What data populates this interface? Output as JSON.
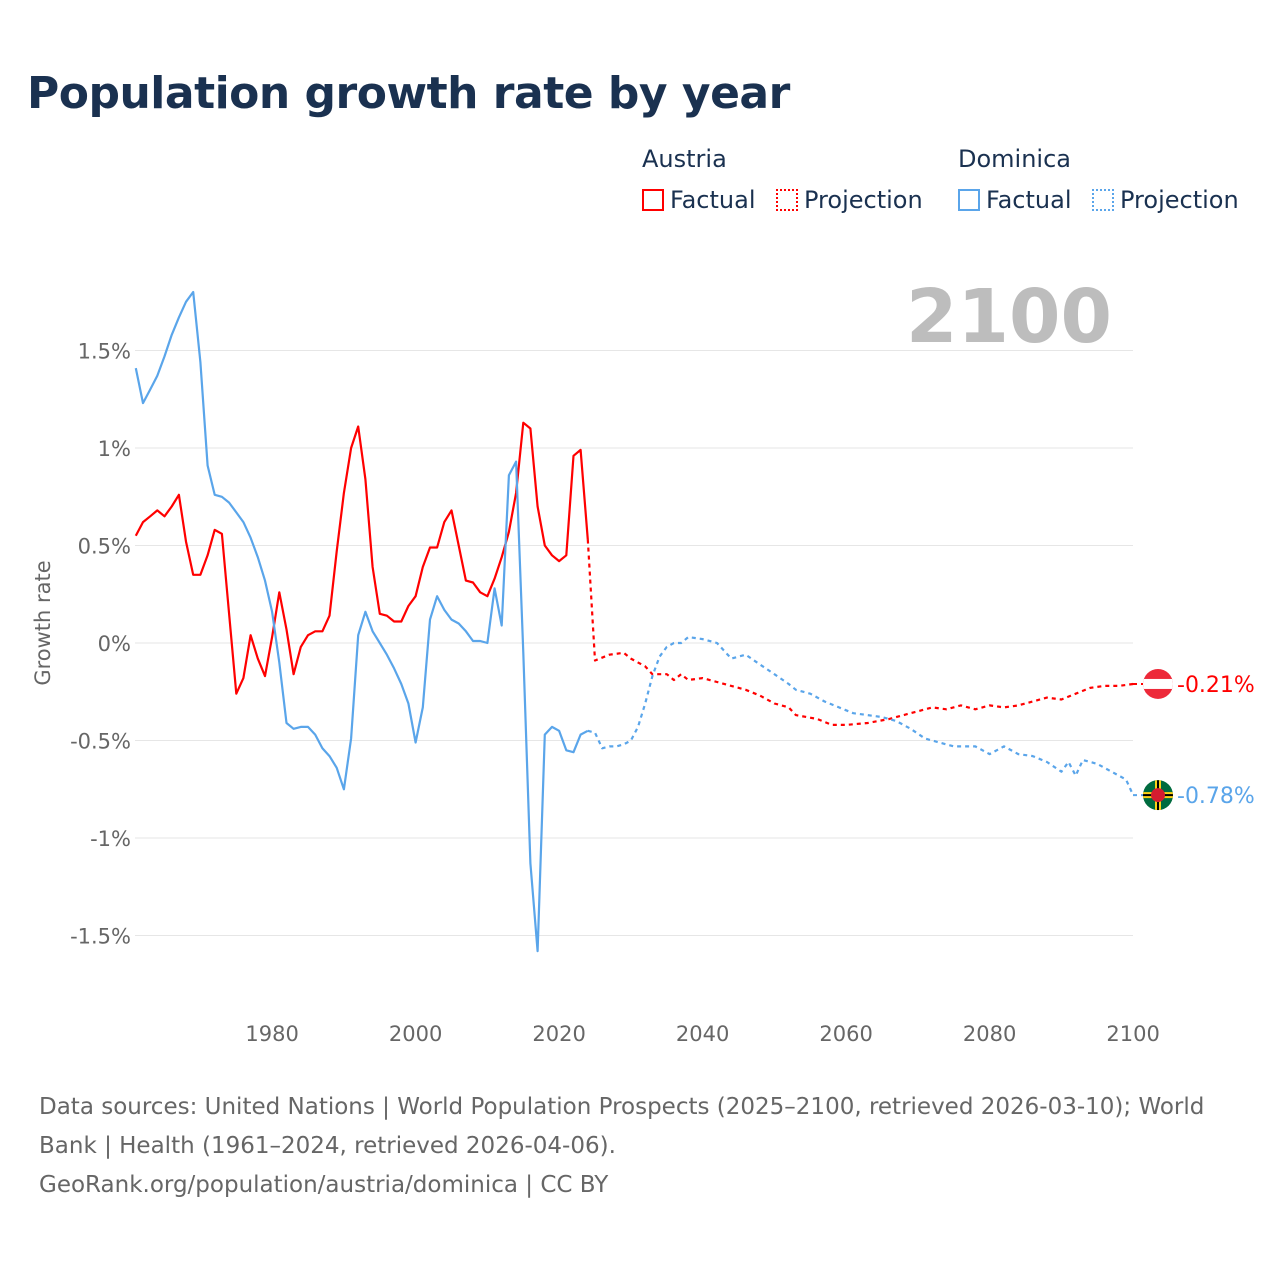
{
  "title": "Population growth rate by year",
  "legend": {
    "groups": [
      {
        "country": "Austria",
        "color": "#ff0000",
        "factual": "Factual",
        "projection": "Projection"
      },
      {
        "country": "Dominica",
        "color": "#5aa5ea",
        "factual": "Factual",
        "projection": "Projection"
      }
    ]
  },
  "year_label": "2100",
  "footer": {
    "sources": "Data sources: United Nations | World Population Prospects (2025–2100, retrieved 2026-03-10); World Bank | Health (1961–2024, retrieved 2026-04-06).",
    "credit": "GeoRank.org/population/austria/dominica | CC BY"
  },
  "chart_data": {
    "type": "line",
    "title": "Population growth rate by year",
    "xlabel": "",
    "ylabel": "Growth rate",
    "xlim": [
      1961,
      2100
    ],
    "ylim": [
      -1.8,
      1.9
    ],
    "x_ticks": [
      1980,
      2000,
      2020,
      2040,
      2060,
      2080,
      2100
    ],
    "y_ticks": [
      1.5,
      1,
      0.5,
      0,
      -0.5,
      -1,
      -1.5
    ],
    "y_tick_labels": [
      "1.5%",
      "1%",
      "0.5%",
      "0%",
      "-0.5%",
      "-1%",
      "-1.5%"
    ],
    "grid": true,
    "series": [
      {
        "name": "Austria Factual",
        "color": "#ff0000",
        "dashed": false,
        "x": [
          1961,
          1962,
          1963,
          1964,
          1965,
          1966,
          1967,
          1968,
          1969,
          1970,
          1971,
          1972,
          1973,
          1974,
          1975,
          1976,
          1977,
          1978,
          1979,
          1980,
          1981,
          1982,
          1983,
          1984,
          1985,
          1986,
          1987,
          1988,
          1989,
          1990,
          1991,
          1992,
          1993,
          1994,
          1995,
          1996,
          1997,
          1998,
          1999,
          2000,
          2001,
          2002,
          2003,
          2004,
          2005,
          2006,
          2007,
          2008,
          2009,
          2010,
          2011,
          2012,
          2013,
          2014,
          2015,
          2016,
          2017,
          2018,
          2019,
          2020,
          2021,
          2022,
          2023,
          2024
        ],
        "values": [
          0.55,
          0.62,
          0.65,
          0.68,
          0.65,
          0.7,
          0.76,
          0.52,
          0.35,
          0.35,
          0.45,
          0.58,
          0.56,
          0.15,
          -0.26,
          -0.18,
          0.04,
          -0.08,
          -0.17,
          0.03,
          0.26,
          0.07,
          -0.16,
          -0.02,
          0.04,
          0.06,
          0.06,
          0.14,
          0.47,
          0.77,
          1.0,
          1.11,
          0.84,
          0.39,
          0.15,
          0.14,
          0.11,
          0.11,
          0.19,
          0.24,
          0.39,
          0.49,
          0.49,
          0.62,
          0.68,
          0.5,
          0.32,
          0.31,
          0.26,
          0.24,
          0.33,
          0.44,
          0.57,
          0.77,
          1.13,
          1.1,
          0.7,
          0.5,
          0.45,
          0.42,
          0.45,
          0.96,
          0.99,
          0.53
        ]
      },
      {
        "name": "Austria Projection",
        "color": "#ff0000",
        "dashed": true,
        "x": [
          2024,
          2025,
          2027,
          2029,
          2030,
          2032,
          2033,
          2035,
          2036,
          2037,
          2038,
          2040,
          2042,
          2044,
          2046,
          2048,
          2050,
          2052,
          2053,
          2056,
          2058,
          2060,
          2063,
          2066,
          2068,
          2070,
          2072,
          2074,
          2076,
          2078,
          2080,
          2082,
          2084,
          2086,
          2088,
          2090,
          2092,
          2094,
          2096,
          2098,
          2100
        ],
        "values": [
          0.53,
          -0.09,
          -0.06,
          -0.05,
          -0.08,
          -0.12,
          -0.16,
          -0.16,
          -0.19,
          -0.16,
          -0.19,
          -0.18,
          -0.2,
          -0.22,
          -0.24,
          -0.27,
          -0.31,
          -0.33,
          -0.37,
          -0.39,
          -0.42,
          -0.42,
          -0.41,
          -0.39,
          -0.37,
          -0.35,
          -0.33,
          -0.34,
          -0.32,
          -0.34,
          -0.32,
          -0.33,
          -0.32,
          -0.3,
          -0.28,
          -0.29,
          -0.26,
          -0.23,
          -0.22,
          -0.22,
          -0.21
        ]
      },
      {
        "name": "Dominica Factual",
        "color": "#5aa5ea",
        "dashed": false,
        "x": [
          1961,
          1962,
          1963,
          1964,
          1965,
          1966,
          1967,
          1968,
          1969,
          1970,
          1971,
          1972,
          1973,
          1974,
          1975,
          1976,
          1977,
          1978,
          1979,
          1980,
          1981,
          1982,
          1983,
          1984,
          1985,
          1986,
          1987,
          1988,
          1989,
          1990,
          1991,
          1992,
          1993,
          1994,
          1995,
          1996,
          1997,
          1998,
          1999,
          2000,
          2001,
          2002,
          2003,
          2004,
          2005,
          2006,
          2007,
          2008,
          2009,
          2010,
          2011,
          2012,
          2013,
          2014,
          2015,
          2016,
          2017,
          2018,
          2019,
          2020,
          2021,
          2022,
          2023,
          2024
        ],
        "values": [
          1.41,
          1.23,
          1.3,
          1.37,
          1.47,
          1.58,
          1.67,
          1.75,
          1.8,
          1.44,
          0.91,
          0.76,
          0.75,
          0.72,
          0.67,
          0.62,
          0.54,
          0.44,
          0.32,
          0.16,
          -0.1,
          -0.41,
          -0.44,
          -0.43,
          -0.43,
          -0.47,
          -0.54,
          -0.58,
          -0.64,
          -0.75,
          -0.49,
          0.04,
          0.16,
          0.06,
          0.0,
          -0.06,
          -0.13,
          -0.21,
          -0.31,
          -0.51,
          -0.33,
          0.12,
          0.24,
          0.17,
          0.12,
          0.1,
          0.06,
          0.01,
          0.01,
          0.0,
          0.28,
          0.09,
          0.86,
          0.93,
          -0.05,
          -1.13,
          -1.58,
          -0.47,
          -0.43,
          -0.45,
          -0.55,
          -0.56,
          -0.47,
          -0.45
        ]
      },
      {
        "name": "Dominica Projection",
        "color": "#5aa5ea",
        "dashed": true,
        "x": [
          2024,
          2025,
          2026,
          2027,
          2028,
          2029,
          2030,
          2031,
          2032,
          2033,
          2034,
          2035,
          2036,
          2037,
          2038,
          2040,
          2042,
          2044,
          2046,
          2048,
          2050,
          2052,
          2053,
          2055,
          2057,
          2059,
          2061,
          2063,
          2065,
          2067,
          2069,
          2071,
          2073,
          2075,
          2078,
          2080,
          2082,
          2084,
          2086,
          2088,
          2090,
          2091,
          2092,
          2093,
          2095,
          2097,
          2099,
          2100
        ],
        "values": [
          -0.45,
          -0.46,
          -0.54,
          -0.53,
          -0.53,
          -0.52,
          -0.5,
          -0.43,
          -0.31,
          -0.17,
          -0.07,
          -0.02,
          0.0,
          0.0,
          0.03,
          0.02,
          0.0,
          -0.08,
          -0.06,
          -0.11,
          -0.16,
          -0.21,
          -0.24,
          -0.26,
          -0.3,
          -0.33,
          -0.36,
          -0.37,
          -0.38,
          -0.4,
          -0.44,
          -0.49,
          -0.51,
          -0.53,
          -0.53,
          -0.57,
          -0.53,
          -0.57,
          -0.58,
          -0.61,
          -0.66,
          -0.61,
          -0.68,
          -0.6,
          -0.62,
          -0.66,
          -0.7,
          -0.78
        ]
      }
    ],
    "end_labels": [
      {
        "country": "Austria",
        "value": -0.21,
        "text": "-0.21%",
        "color": "#ff0000"
      },
      {
        "country": "Dominica",
        "value": -0.78,
        "text": "-0.78%",
        "color": "#5aa5ea"
      }
    ]
  }
}
